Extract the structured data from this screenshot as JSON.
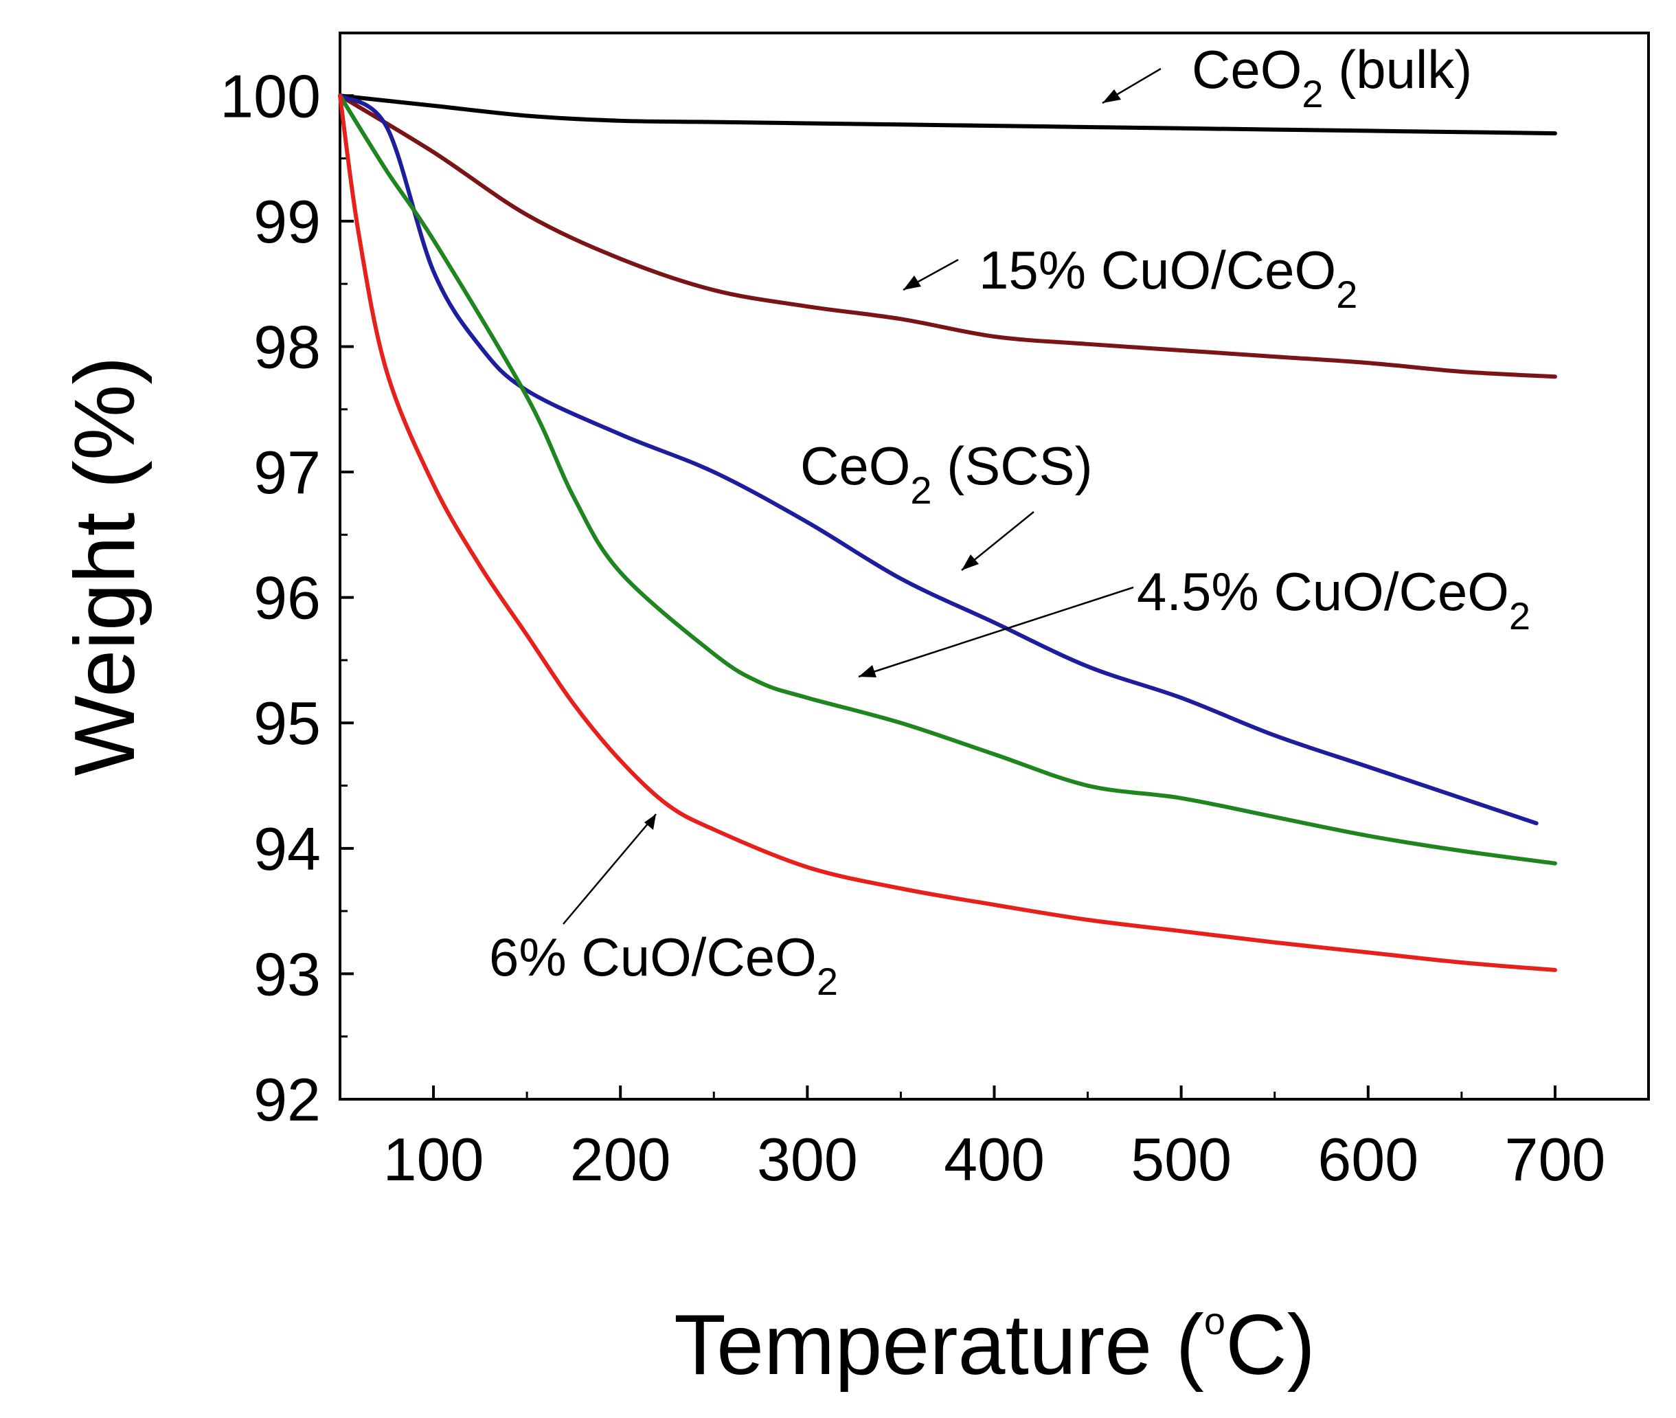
{
  "chart_data": {
    "type": "line",
    "title": "",
    "xlabel": "Temperature (°C)",
    "xlabel_main": "Temperature (",
    "xlabel_unit_sup": "o",
    "xlabel_unit": "C)",
    "ylabel": "Weight (%)",
    "xlim": [
      50,
      750
    ],
    "ylim": [
      92,
      100.5
    ],
    "xticks": [
      100,
      200,
      300,
      400,
      500,
      600,
      700
    ],
    "yticks": [
      92,
      93,
      94,
      95,
      96,
      97,
      98,
      99,
      100
    ],
    "x_tick_labels": [
      "100",
      "200",
      "300",
      "400",
      "500",
      "600",
      "700"
    ],
    "y_tick_labels": [
      "92",
      "93",
      "94",
      "95",
      "96",
      "97",
      "98",
      "99",
      "100"
    ],
    "grid": false,
    "series": [
      {
        "name": "CeO2 (bulk)",
        "label_main": "CeO",
        "label_sub": "2",
        "label_rest": " (bulk)",
        "color": "#000000",
        "x": [
          50,
          100,
          150,
          200,
          250,
          300,
          350,
          400,
          450,
          500,
          550,
          600,
          650,
          700
        ],
        "y": [
          100.0,
          99.92,
          99.84,
          99.8,
          99.79,
          99.78,
          99.77,
          99.76,
          99.75,
          99.74,
          99.73,
          99.72,
          99.71,
          99.7
        ]
      },
      {
        "name": "15% CuO/CeO2",
        "label_main": "15% CuO/CeO",
        "label_sub": "2",
        "label_rest": "",
        "color": "#7b1416",
        "x": [
          50,
          100,
          150,
          200,
          250,
          300,
          350,
          400,
          450,
          500,
          550,
          600,
          650,
          700
        ],
        "y": [
          100.0,
          99.55,
          99.05,
          98.7,
          98.45,
          98.32,
          98.22,
          98.08,
          98.02,
          97.97,
          97.92,
          97.87,
          97.8,
          97.76
        ]
      },
      {
        "name": "CeO2 (SCS)",
        "label_main": "CeO",
        "label_sub": "2",
        "label_rest": " (SCS)",
        "color": "#1d1d9e",
        "x": [
          50,
          75,
          100,
          125,
          150,
          200,
          250,
          300,
          350,
          400,
          450,
          500,
          550,
          600,
          650,
          690
        ],
        "y": [
          100.0,
          99.75,
          98.6,
          98.0,
          97.65,
          97.3,
          97.0,
          96.6,
          96.15,
          95.8,
          95.45,
          95.2,
          94.9,
          94.65,
          94.4,
          94.2
        ]
      },
      {
        "name": "4.5% CuO/CeO2",
        "label_main": "4.5% CuO/CeO",
        "label_sub": "2",
        "label_rest": "",
        "color": "#1f861f",
        "x": [
          50,
          75,
          100,
          150,
          175,
          200,
          250,
          275,
          300,
          350,
          400,
          450,
          500,
          550,
          600,
          650,
          700
        ],
        "y": [
          100.0,
          99.4,
          98.85,
          97.6,
          96.8,
          96.2,
          95.55,
          95.32,
          95.2,
          95.0,
          94.75,
          94.5,
          94.4,
          94.25,
          94.1,
          93.98,
          93.88
        ]
      },
      {
        "name": "6% CuO/CeO2",
        "label_main": "6% CuO/CeO",
        "label_sub": "2",
        "label_rest": "",
        "color": "#e8201c",
        "x": [
          50,
          60,
          75,
          100,
          125,
          150,
          175,
          200,
          225,
          250,
          300,
          350,
          400,
          450,
          500,
          550,
          600,
          650,
          700
        ],
        "y": [
          100.0,
          98.9,
          97.8,
          96.9,
          96.25,
          95.7,
          95.15,
          94.7,
          94.35,
          94.15,
          93.85,
          93.68,
          93.55,
          93.43,
          93.34,
          93.25,
          93.17,
          93.09,
          93.03
        ]
      }
    ]
  }
}
